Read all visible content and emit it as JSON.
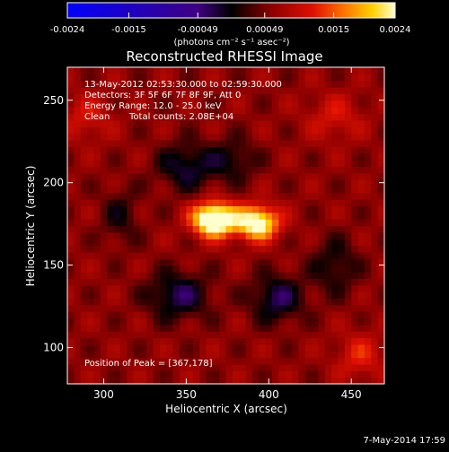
{
  "chart_data": {
    "type": "heatmap",
    "title": "Reconstructed RHESSI Image",
    "xlabel": "Heliocentric X (arcsec)",
    "ylabel": "Heliocentric Y (arcsec)",
    "xlim": [
      278,
      470
    ],
    "ylim": [
      78,
      270
    ],
    "x_ticks": [
      300,
      350,
      400,
      450
    ],
    "x_tick_labels": [
      "300",
      "350",
      "400",
      "450"
    ],
    "y_ticks": [
      100,
      150,
      200,
      250
    ],
    "y_tick_labels": [
      "100",
      "150",
      "200",
      "250"
    ],
    "colorbar": {
      "min": -0.0024,
      "max": 0.0024,
      "ticks": [
        -0.0024,
        -0.0015,
        -0.00049,
        0.00049,
        0.0015,
        0.0024
      ],
      "tick_labels": [
        "-0.0024",
        "-0.0015",
        "-0.00049",
        "0.00049",
        "0.0015",
        "0.0024"
      ],
      "unit_label": "(photons cm⁻² s⁻¹ asec⁻²)"
    },
    "sources": [
      {
        "x": 367,
        "y": 178,
        "sx": 9,
        "sy": 7,
        "amp": 0.0026
      },
      {
        "x": 393,
        "y": 176,
        "sx": 9,
        "sy": 7,
        "amp": 0.0021
      },
      {
        "x": 350,
        "y": 210,
        "sx": 12,
        "sy": 10,
        "amp": -0.0008
      },
      {
        "x": 378,
        "y": 214,
        "sx": 10,
        "sy": 9,
        "amp": -0.0006
      },
      {
        "x": 345,
        "y": 132,
        "sx": 13,
        "sy": 10,
        "amp": -0.0009
      },
      {
        "x": 405,
        "y": 130,
        "sx": 11,
        "sy": 10,
        "amp": -0.0009
      },
      {
        "x": 440,
        "y": 150,
        "sx": 10,
        "sy": 12,
        "amp": -0.0006
      },
      {
        "x": 310,
        "y": 180,
        "sx": 8,
        "sy": 12,
        "amp": -0.0005
      },
      {
        "x": 290,
        "y": 240,
        "sx": 10,
        "sy": 10,
        "amp": 0.0005
      },
      {
        "x": 440,
        "y": 240,
        "sx": 12,
        "sy": 10,
        "amp": 0.0005
      },
      {
        "x": 455,
        "y": 95,
        "sx": 10,
        "sy": 10,
        "amp": 0.0006
      }
    ]
  },
  "annotations": {
    "time_range": "13-May-2012 02:53:30.000 to 02:59:30.000",
    "detectors": "Detectors: 3F 5F 6F 7F 8F 9F, Att 0",
    "energy_range": "Energy Range: 12.0 - 25.0 keV",
    "clean_label": "Clean",
    "total_counts": "Total counts: 2.08E+04",
    "peak_position": "Position of Peak = [367,178]"
  },
  "footer": {
    "date_stamp": "7-May-2014 17:59"
  }
}
